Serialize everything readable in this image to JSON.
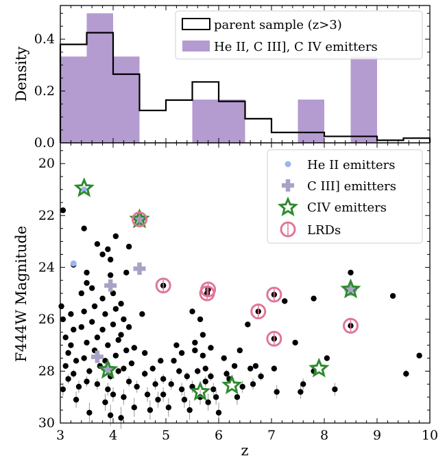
{
  "colors": {
    "purple": "#b49bd0",
    "parent_line": "#000000",
    "heII": "#9db4f0",
    "ciii": "#a7a3c6",
    "civ": "#2e8b2e",
    "lrd": "#e07696",
    "points": "#000000"
  },
  "chart_data": [
    {
      "type": "bar",
      "ylabel": "Density",
      "ylim": [
        0,
        0.53
      ],
      "xlim": [
        3,
        10
      ],
      "yticks": [
        "0.0",
        "0.2",
        "0.4"
      ],
      "legend": {
        "position": "top-right",
        "entries": [
          "parent sample (z>3)",
          "He II, C III], C IV emitters"
        ]
      },
      "series": [
        {
          "name": "parent sample (z>3)",
          "style": "step",
          "bin_edges": [
            3,
            3.5,
            4,
            4.5,
            5,
            5.5,
            6,
            6.5,
            7,
            7.5,
            8,
            8.5,
            9,
            9.5,
            10
          ],
          "values": [
            0.38,
            0.425,
            0.265,
            0.125,
            0.165,
            0.235,
            0.16,
            0.093,
            0.04,
            0.04,
            0.025,
            0.025,
            0.01,
            0.018
          ]
        },
        {
          "name": "He II, C III], C IV emitters",
          "style": "filled",
          "bins": [
            [
              3,
              3.5,
              0.333
            ],
            [
              3.5,
              4,
              0.5
            ],
            [
              4,
              4.5,
              0.333
            ],
            [
              5.5,
              6.5,
              0.167
            ],
            [
              7.5,
              8,
              0.167
            ],
            [
              8.5,
              9,
              0.333
            ]
          ]
        }
      ]
    },
    {
      "type": "scatter",
      "xlabel": "z",
      "ylabel": "F444W Magnitude",
      "xlim": [
        3,
        10
      ],
      "ylim": [
        30,
        19.2
      ],
      "y_inverted": true,
      "xticks": [
        "3",
        "4",
        "5",
        "6",
        "7",
        "8",
        "9",
        "10"
      ],
      "yticks": [
        "20",
        "22",
        "24",
        "26",
        "28",
        "30"
      ],
      "legend": {
        "position": "top-right",
        "entries": [
          "He II emitters",
          "C III] emitters",
          "CIV emitters",
          "LRDs"
        ]
      },
      "parent_points": [
        [
          3.05,
          21.8
        ],
        [
          3.25,
          23.9
        ],
        [
          3.45,
          22.5
        ],
        [
          3.5,
          24.2
        ],
        [
          3.5,
          24.6
        ],
        [
          3.7,
          23.1
        ],
        [
          3.8,
          23.5
        ],
        [
          3.9,
          23.3
        ],
        [
          3.95,
          23.7
        ],
        [
          3.95,
          24.3
        ],
        [
          4.05,
          22.8
        ],
        [
          4.3,
          23.2
        ],
        [
          4.25,
          24.2
        ],
        [
          3.02,
          25.5
        ],
        [
          3.05,
          26.0
        ],
        [
          3.1,
          26.7
        ],
        [
          3.15,
          27.3
        ],
        [
          3.1,
          27.8
        ],
        [
          3.15,
          28.3
        ],
        [
          3.05,
          28.7
        ],
        [
          3.2,
          25.8
        ],
        [
          3.25,
          26.4
        ],
        [
          3.2,
          27.0
        ],
        [
          3.3,
          27.6
        ],
        [
          3.25,
          28.1
        ],
        [
          3.35,
          28.6
        ],
        [
          3.3,
          29.1
        ],
        [
          3.4,
          25.0
        ],
        [
          3.45,
          25.7
        ],
        [
          3.4,
          26.3
        ],
        [
          3.5,
          26.9
        ],
        [
          3.45,
          27.5
        ],
        [
          3.55,
          28.0
        ],
        [
          3.5,
          28.4
        ],
        [
          3.55,
          29.6
        ],
        [
          3.6,
          24.8
        ],
        [
          3.65,
          25.5
        ],
        [
          3.6,
          26.1
        ],
        [
          3.7,
          26.7
        ],
        [
          3.65,
          27.2
        ],
        [
          3.75,
          27.8
        ],
        [
          3.7,
          28.5
        ],
        [
          3.8,
          25.2
        ],
        [
          3.85,
          25.8
        ],
        [
          3.8,
          26.4
        ],
        [
          3.9,
          27.0
        ],
        [
          3.85,
          27.6
        ],
        [
          3.95,
          28.2
        ],
        [
          3.9,
          28.7
        ],
        [
          3.85,
          29.2
        ],
        [
          4.0,
          25.0
        ],
        [
          4.05,
          25.6
        ],
        [
          4.0,
          26.2
        ],
        [
          4.1,
          26.8
        ],
        [
          4.05,
          27.4
        ],
        [
          4.1,
          28.0
        ],
        [
          4.0,
          28.9
        ],
        [
          3.95,
          29.7
        ],
        [
          4.15,
          25.4
        ],
        [
          4.2,
          26.0
        ],
        [
          4.15,
          26.6
        ],
        [
          4.25,
          27.2
        ],
        [
          4.2,
          27.9
        ],
        [
          4.3,
          28.4
        ],
        [
          4.2,
          29.0
        ],
        [
          4.3,
          26.3
        ],
        [
          4.35,
          27.7
        ],
        [
          4.4,
          27.1
        ],
        [
          4.45,
          28.6
        ],
        [
          4.4,
          29.4
        ],
        [
          4.15,
          29.8
        ],
        [
          4.55,
          25.8
        ],
        [
          4.6,
          27.3
        ],
        [
          4.6,
          28.1
        ],
        [
          4.65,
          28.9
        ],
        [
          4.7,
          29.5
        ],
        [
          4.75,
          27.9
        ],
        [
          4.8,
          28.5
        ],
        [
          4.85,
          29.1
        ],
        [
          4.9,
          27.6
        ],
        [
          4.95,
          28.3
        ],
        [
          4.95,
          28.9
        ],
        [
          5.05,
          29.4
        ],
        [
          5.1,
          28.5
        ],
        [
          5.15,
          27.6
        ],
        [
          5.2,
          27.0
        ],
        [
          5.25,
          28.0
        ],
        [
          5.3,
          28.7
        ],
        [
          5.3,
          27.3
        ],
        [
          5.35,
          29.1
        ],
        [
          5.4,
          28.2
        ],
        [
          5.5,
          28.6
        ],
        [
          5.45,
          29.5
        ],
        [
          5.55,
          27.2
        ],
        [
          5.6,
          28.0
        ],
        [
          5.65,
          29.0
        ],
        [
          5.7,
          26.6
        ],
        [
          5.7,
          27.4
        ],
        [
          5.75,
          27.9
        ],
        [
          5.75,
          28.4
        ],
        [
          5.8,
          29.2
        ],
        [
          5.85,
          27.1
        ],
        [
          5.85,
          28.2
        ],
        [
          5.9,
          28.7
        ],
        [
          5.95,
          29.0
        ],
        [
          6.0,
          29.6
        ],
        [
          5.65,
          26.0
        ],
        [
          5.5,
          25.7
        ],
        [
          5.55,
          26.9
        ],
        [
          6.1,
          27.5
        ],
        [
          6.15,
          28.1
        ],
        [
          6.2,
          28.3
        ],
        [
          6.3,
          27.8
        ],
        [
          6.4,
          27.2
        ],
        [
          6.45,
          28.6
        ],
        [
          6.35,
          29.0
        ],
        [
          6.55,
          26.2
        ],
        [
          6.6,
          27.9
        ],
        [
          6.65,
          28.5
        ],
        [
          6.7,
          27.8
        ],
        [
          6.8,
          28.2
        ],
        [
          7.05,
          27.9
        ],
        [
          7.1,
          28.8
        ],
        [
          7.25,
          25.3
        ],
        [
          7.45,
          26.9
        ],
        [
          7.55,
          28.8
        ],
        [
          7.6,
          28.5
        ],
        [
          7.8,
          28.0
        ],
        [
          7.8,
          25.2
        ],
        [
          8.05,
          27.5
        ],
        [
          8.2,
          28.7
        ],
        [
          8.5,
          24.2
        ],
        [
          9.3,
          25.1
        ],
        [
          9.55,
          28.1
        ],
        [
          9.8,
          27.4
        ]
      ],
      "he_ii_emitters": [
        [
          3.25,
          23.85
        ],
        [
          3.45,
          21.0
        ],
        [
          4.5,
          22.2
        ],
        [
          8.5,
          24.9
        ]
      ],
      "c_iii_emitters": [
        [
          3.95,
          24.7
        ],
        [
          4.5,
          24.05
        ],
        [
          3.7,
          27.45
        ],
        [
          3.9,
          27.9
        ],
        [
          4.5,
          22.1
        ],
        [
          8.5,
          24.85
        ]
      ],
      "civ_emitters": [
        [
          3.45,
          20.95
        ],
        [
          4.5,
          22.15
        ],
        [
          3.9,
          27.95
        ],
        [
          5.65,
          28.8
        ],
        [
          6.25,
          28.55
        ],
        [
          7.9,
          27.9
        ],
        [
          8.5,
          24.85
        ]
      ],
      "lrds": [
        [
          4.5,
          22.15
        ],
        [
          4.95,
          24.7
        ],
        [
          5.8,
          24.85
        ],
        [
          5.78,
          25.0
        ],
        [
          7.05,
          25.05
        ],
        [
          6.75,
          25.7
        ],
        [
          7.05,
          26.75
        ],
        [
          8.5,
          26.25
        ]
      ]
    }
  ]
}
